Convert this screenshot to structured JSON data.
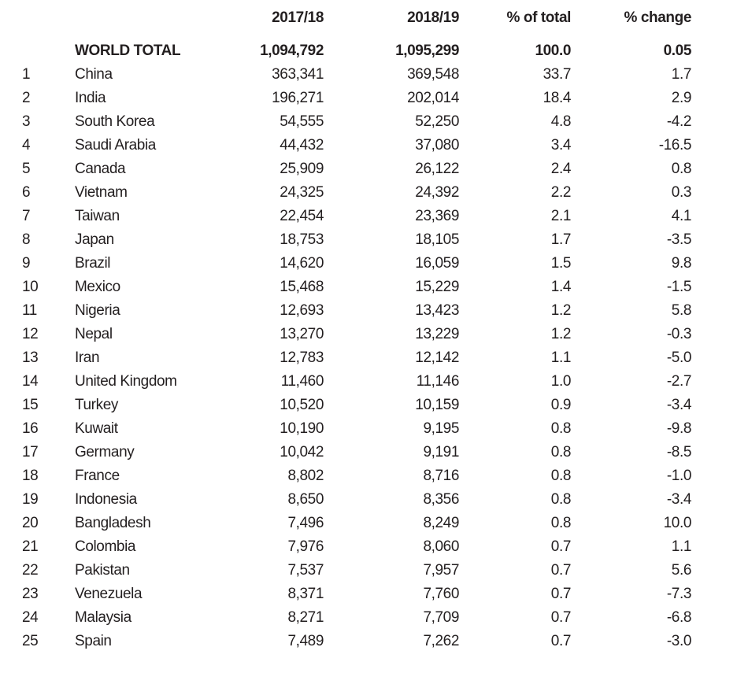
{
  "colors": {
    "text": "#231f20",
    "background": "#ffffff"
  },
  "chart_data": {
    "type": "table",
    "columns": [
      "2017/18",
      "2018/19",
      "% of total",
      "% change"
    ],
    "total_row": {
      "rank": "",
      "place": "WORLD TOTAL",
      "y1718": "1,094,792",
      "y1819": "1,095,299",
      "pct_total": "100.0",
      "pct_change": "0.05"
    },
    "rows": [
      {
        "rank": "1",
        "place": "China",
        "y1718": "363,341",
        "y1819": "369,548",
        "pct_total": "33.7",
        "pct_change": "1.7"
      },
      {
        "rank": "2",
        "place": "India",
        "y1718": "196,271",
        "y1819": "202,014",
        "pct_total": "18.4",
        "pct_change": "2.9"
      },
      {
        "rank": "3",
        "place": "South Korea",
        "y1718": "54,555",
        "y1819": "52,250",
        "pct_total": "4.8",
        "pct_change": "-4.2"
      },
      {
        "rank": "4",
        "place": "Saudi Arabia",
        "y1718": "44,432",
        "y1819": "37,080",
        "pct_total": "3.4",
        "pct_change": "-16.5"
      },
      {
        "rank": "5",
        "place": "Canada",
        "y1718": "25,909",
        "y1819": "26,122",
        "pct_total": "2.4",
        "pct_change": "0.8"
      },
      {
        "rank": "6",
        "place": "Vietnam",
        "y1718": "24,325",
        "y1819": "24,392",
        "pct_total": "2.2",
        "pct_change": "0.3"
      },
      {
        "rank": "7",
        "place": "Taiwan",
        "y1718": "22,454",
        "y1819": "23,369",
        "pct_total": "2.1",
        "pct_change": "4.1"
      },
      {
        "rank": "8",
        "place": "Japan",
        "y1718": "18,753",
        "y1819": "18,105",
        "pct_total": "1.7",
        "pct_change": "-3.5"
      },
      {
        "rank": "9",
        "place": "Brazil",
        "y1718": "14,620",
        "y1819": "16,059",
        "pct_total": "1.5",
        "pct_change": "9.8"
      },
      {
        "rank": "10",
        "place": "Mexico",
        "y1718": "15,468",
        "y1819": "15,229",
        "pct_total": "1.4",
        "pct_change": "-1.5"
      },
      {
        "rank": "11",
        "place": "Nigeria",
        "y1718": "12,693",
        "y1819": "13,423",
        "pct_total": "1.2",
        "pct_change": "5.8"
      },
      {
        "rank": "12",
        "place": "Nepal",
        "y1718": "13,270",
        "y1819": "13,229",
        "pct_total": "1.2",
        "pct_change": "-0.3"
      },
      {
        "rank": "13",
        "place": "Iran",
        "y1718": "12,783",
        "y1819": "12,142",
        "pct_total": "1.1",
        "pct_change": "-5.0"
      },
      {
        "rank": "14",
        "place": "United Kingdom",
        "y1718": "11,460",
        "y1819": "11,146",
        "pct_total": "1.0",
        "pct_change": "-2.7"
      },
      {
        "rank": "15",
        "place": "Turkey",
        "y1718": "10,520",
        "y1819": "10,159",
        "pct_total": "0.9",
        "pct_change": "-3.4"
      },
      {
        "rank": "16",
        "place": "Kuwait",
        "y1718": "10,190",
        "y1819": "9,195",
        "pct_total": "0.8",
        "pct_change": "-9.8"
      },
      {
        "rank": "17",
        "place": "Germany",
        "y1718": "10,042",
        "y1819": "9,191",
        "pct_total": "0.8",
        "pct_change": "-8.5"
      },
      {
        "rank": "18",
        "place": "France",
        "y1718": "8,802",
        "y1819": "8,716",
        "pct_total": "0.8",
        "pct_change": "-1.0"
      },
      {
        "rank": "19",
        "place": "Indonesia",
        "y1718": "8,650",
        "y1819": "8,356",
        "pct_total": "0.8",
        "pct_change": "-3.4"
      },
      {
        "rank": "20",
        "place": "Bangladesh",
        "y1718": "7,496",
        "y1819": "8,249",
        "pct_total": "0.8",
        "pct_change": "10.0"
      },
      {
        "rank": "21",
        "place": "Colombia",
        "y1718": "7,976",
        "y1819": "8,060",
        "pct_total": "0.7",
        "pct_change": "1.1"
      },
      {
        "rank": "22",
        "place": "Pakistan",
        "y1718": "7,537",
        "y1819": "7,957",
        "pct_total": "0.7",
        "pct_change": "5.6"
      },
      {
        "rank": "23",
        "place": "Venezuela",
        "y1718": "8,371",
        "y1819": "7,760",
        "pct_total": "0.7",
        "pct_change": "-7.3"
      },
      {
        "rank": "24",
        "place": "Malaysia",
        "y1718": "8,271",
        "y1819": "7,709",
        "pct_total": "0.7",
        "pct_change": "-6.8"
      },
      {
        "rank": "25",
        "place": "Spain",
        "y1718": "7,489",
        "y1819": "7,262",
        "pct_total": "0.7",
        "pct_change": "-3.0"
      }
    ]
  }
}
